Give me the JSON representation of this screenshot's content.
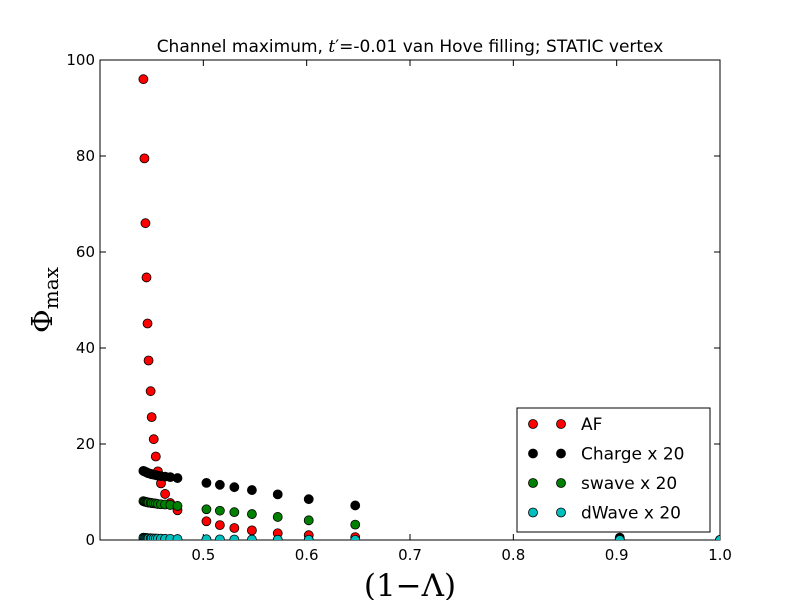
{
  "chart_data": {
    "type": "scatter",
    "title_prefix": "Channel maximum, ",
    "title_t": "t",
    "title_prime": "′",
    "title_suffix": "=-0.01 van Hove filling; STATIC vertex",
    "xlabel": "(1−Λ)",
    "ylabel_main": "Φ",
    "ylabel_sub": "max",
    "xlim": [
      0.4,
      1.0
    ],
    "ylim": [
      0,
      100
    ],
    "x_ticks": [
      0.5,
      0.6,
      0.7,
      0.8,
      0.9,
      1.0
    ],
    "x_tick_labels": [
      "0.5",
      "0.6",
      "0.7",
      "0.8",
      "0.9",
      "1.0"
    ],
    "y_ticks": [
      0,
      20,
      40,
      60,
      80,
      100
    ],
    "y_tick_labels": [
      "0",
      "20",
      "40",
      "60",
      "80",
      "100"
    ],
    "grid": false,
    "legend_position": "lower-right",
    "series": [
      {
        "name": "AF",
        "color": "#ff0000",
        "points": [
          [
            0.442,
            96
          ],
          [
            0.443,
            79.5
          ],
          [
            0.444,
            66
          ],
          [
            0.445,
            54.7
          ],
          [
            0.446,
            45.1
          ],
          [
            0.447,
            37.4
          ],
          [
            0.449,
            31
          ],
          [
            0.45,
            25.6
          ],
          [
            0.452,
            21
          ],
          [
            0.454,
            17.4
          ],
          [
            0.456,
            14.3
          ],
          [
            0.459,
            11.8
          ],
          [
            0.463,
            9.6
          ],
          [
            0.468,
            7.7
          ],
          [
            0.475,
            6.2
          ],
          [
            0.503,
            3.9
          ],
          [
            0.516,
            3.1
          ],
          [
            0.53,
            2.5
          ],
          [
            0.547,
            2
          ],
          [
            0.572,
            1.4
          ],
          [
            0.602,
            1
          ],
          [
            0.647,
            0.6
          ],
          [
            0.903,
            0.2
          ],
          [
            1.0,
            0
          ]
        ]
      },
      {
        "name": "Charge x 20",
        "color": "#000000",
        "points": [
          [
            0.442,
            14.4
          ],
          [
            0.443,
            14.3
          ],
          [
            0.444,
            14.2
          ],
          [
            0.445,
            14.1
          ],
          [
            0.446,
            14
          ],
          [
            0.447,
            13.9
          ],
          [
            0.449,
            13.8
          ],
          [
            0.45,
            13.7
          ],
          [
            0.452,
            13.6
          ],
          [
            0.454,
            13.5
          ],
          [
            0.456,
            13.4
          ],
          [
            0.459,
            13.3
          ],
          [
            0.463,
            13.2
          ],
          [
            0.468,
            13.1
          ],
          [
            0.475,
            12.9
          ],
          [
            0.503,
            11.9
          ],
          [
            0.516,
            11.5
          ],
          [
            0.53,
            11
          ],
          [
            0.547,
            10.4
          ],
          [
            0.572,
            9.5
          ],
          [
            0.602,
            8.5
          ],
          [
            0.647,
            7.2
          ],
          [
            0.903,
            0.5
          ],
          [
            1.0,
            0
          ]
        ]
      },
      {
        "name": "swave x 20",
        "color": "#008000",
        "points": [
          [
            0.442,
            8.1
          ],
          [
            0.443,
            8
          ],
          [
            0.444,
            7.95
          ],
          [
            0.445,
            7.9
          ],
          [
            0.446,
            7.85
          ],
          [
            0.447,
            7.8
          ],
          [
            0.449,
            7.75
          ],
          [
            0.45,
            7.7
          ],
          [
            0.452,
            7.65
          ],
          [
            0.454,
            7.6
          ],
          [
            0.456,
            7.5
          ],
          [
            0.459,
            7.45
          ],
          [
            0.463,
            7.4
          ],
          [
            0.468,
            7.3
          ],
          [
            0.475,
            7.1
          ],
          [
            0.503,
            6.4
          ],
          [
            0.516,
            6.1
          ],
          [
            0.53,
            5.8
          ],
          [
            0.547,
            5.4
          ],
          [
            0.572,
            4.8
          ],
          [
            0.602,
            4.1
          ],
          [
            0.647,
            3.2
          ],
          [
            0.903,
            0.2
          ],
          [
            1.0,
            0
          ]
        ]
      },
      {
        "name": "dWave x 20",
        "color": "#00bfbf",
        "points": [
          [
            0.442,
            0.5
          ],
          [
            0.443,
            0.45
          ],
          [
            0.444,
            0.42
          ],
          [
            0.445,
            0.4
          ],
          [
            0.446,
            0.38
          ],
          [
            0.447,
            0.36
          ],
          [
            0.449,
            0.35
          ],
          [
            0.45,
            0.33
          ],
          [
            0.452,
            0.32
          ],
          [
            0.454,
            0.3
          ],
          [
            0.456,
            0.28
          ],
          [
            0.459,
            0.27
          ],
          [
            0.463,
            0.25
          ],
          [
            0.468,
            0.23
          ],
          [
            0.475,
            0.2
          ],
          [
            0.503,
            0.15
          ],
          [
            0.516,
            0.13
          ],
          [
            0.53,
            0.11
          ],
          [
            0.547,
            0.09
          ],
          [
            0.572,
            0.07
          ],
          [
            0.602,
            0.05
          ],
          [
            0.647,
            0.03
          ],
          [
            0.903,
            0.01
          ],
          [
            1.0,
            0
          ]
        ]
      }
    ]
  }
}
